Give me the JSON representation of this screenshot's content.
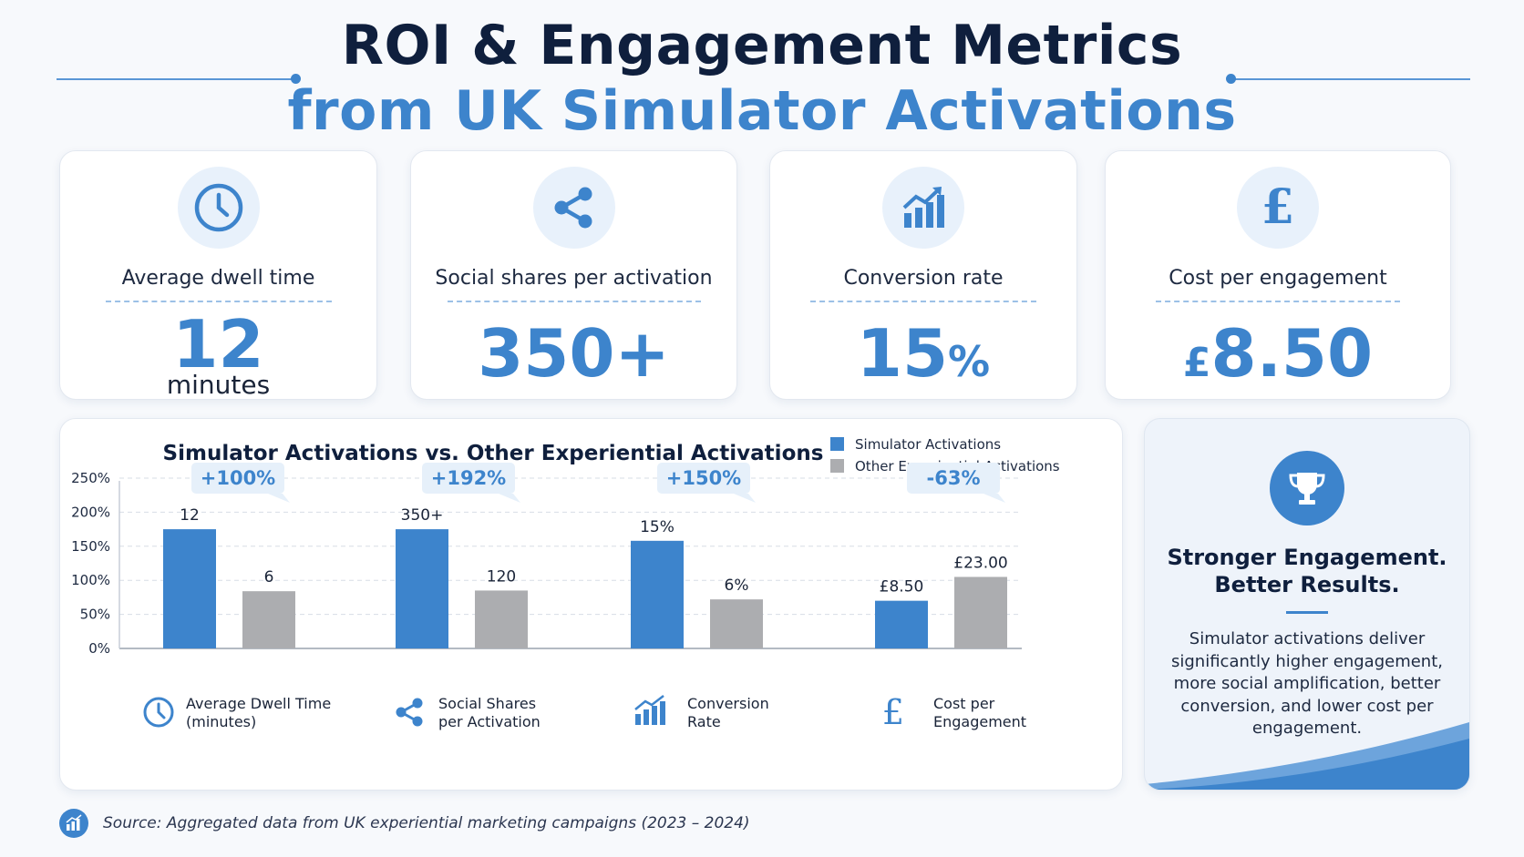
{
  "header": {
    "title_line1": "ROI & Engagement Metrics",
    "title_line2": "from UK Simulator Activations"
  },
  "colors": {
    "accent": "#3d84cc",
    "navy": "#0f1f3d",
    "gray_bar": "#acadb0",
    "icon_bg": "#e8f1fb"
  },
  "kpis": [
    {
      "icon": "clock-icon",
      "label": "Average dwell time",
      "value": "12",
      "unit": "minutes"
    },
    {
      "icon": "share-icon",
      "label": "Social shares per activation",
      "value": "350+"
    },
    {
      "icon": "bar-chart-icon",
      "label": "Conversion rate",
      "value": "15",
      "suffix": "%"
    },
    {
      "icon": "pound-icon",
      "label": "Cost per engagement",
      "prefix": "£",
      "value": "8.50"
    }
  ],
  "chart_data": {
    "type": "bar",
    "title": "Simulator Activations vs. Other Experiential Activations",
    "categories": [
      "Average Dwell Time (minutes)",
      "Social Shares per Activation",
      "Conversion Rate",
      "Cost per Engagement"
    ],
    "category_lines": [
      [
        "Average Dwell Time",
        "(minutes)"
      ],
      [
        "Social Shares",
        "per Activation"
      ],
      [
        "Conversion",
        "Rate"
      ],
      [
        "Cost per",
        "Engagement"
      ]
    ],
    "category_icons": [
      "clock-icon",
      "share-icon",
      "bar-chart-icon",
      "pound-icon"
    ],
    "series": [
      {
        "name": "Simulator Activations",
        "color": "#3d84cc",
        "values": [
          175,
          175,
          158,
          70
        ],
        "labels": [
          "12",
          "350+",
          "15%",
          "£8.50"
        ]
      },
      {
        "name": "Other Experiential Activations",
        "color": "#acadb0",
        "values": [
          84,
          85,
          72,
          105
        ],
        "labels": [
          "6",
          "120",
          "6%",
          "£23.00"
        ]
      }
    ],
    "annotations": [
      "+100%",
      "+192%",
      "+150%",
      "-63%"
    ],
    "yticks": [
      "0%",
      "50%",
      "100%",
      "150%",
      "200%",
      "250%"
    ],
    "ylim": [
      0,
      250
    ],
    "grid": true,
    "legend_position": "top-right"
  },
  "summary": {
    "heading_line1": "Stronger Engagement.",
    "heading_line2": "Better Results.",
    "body": "Simulator activations deliver significantly higher engagement, more social amplification, better conversion, and lower cost per engagement.",
    "icon": "trophy-icon"
  },
  "footer": {
    "source": "Source: Aggregated data from UK experiential marketing campaigns (2023 – 2024)",
    "icon": "bar-chart-icon"
  }
}
